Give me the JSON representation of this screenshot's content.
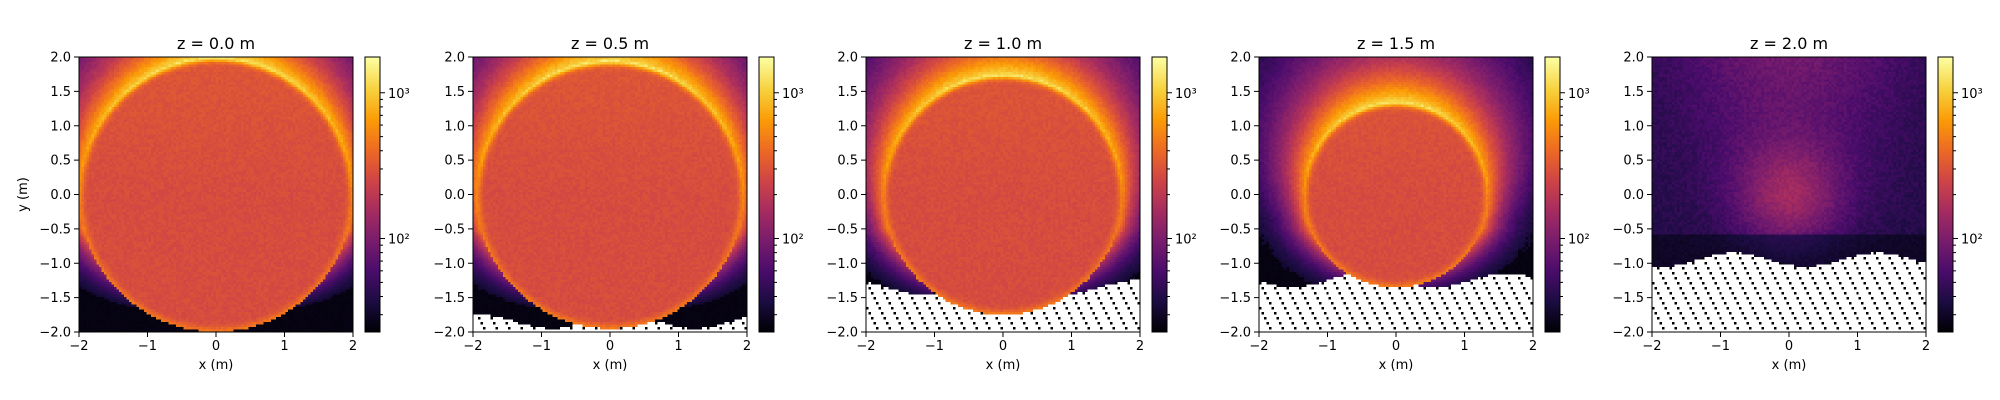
{
  "chart_data": [
    {
      "type": "heatmap",
      "title": "z = 0.0 m",
      "xlabel": "x (m)",
      "ylabel": "y (m)",
      "xlim": [
        -2,
        2
      ],
      "ylim": [
        -2,
        2
      ],
      "xticks": [
        "−2",
        "−1",
        "0",
        "1",
        "2"
      ],
      "yticks": [
        "2.0",
        "1.5",
        "1.0",
        "0.5",
        "0.0",
        "−0.5",
        "−1.0",
        "−1.5",
        "−2.0"
      ],
      "colormap": "inferno",
      "color_scale": "log",
      "colorbar_ticks": [
        "10²",
        "10³"
      ],
      "disc": {
        "center_y": 0.0,
        "radius": 2.0
      },
      "masked_below_y": null
    },
    {
      "type": "heatmap",
      "title": "z = 0.5 m",
      "xlabel": "x (m)",
      "ylabel": "",
      "xlim": [
        -2,
        2
      ],
      "ylim": [
        -2,
        2
      ],
      "xticks": [
        "−2",
        "−1",
        "0",
        "1",
        "2"
      ],
      "yticks": [
        "2.0",
        "1.5",
        "1.0",
        "0.5",
        "0.0",
        "−0.5",
        "−1.0",
        "−1.5",
        "−2.0"
      ],
      "colormap": "inferno",
      "color_scale": "log",
      "colorbar_ticks": [
        "10²",
        "10³"
      ],
      "disc": {
        "center_y": 0.0,
        "radius": 1.95
      },
      "masked_below_y": -1.85
    },
    {
      "type": "heatmap",
      "title": "z = 1.0 m",
      "xlabel": "x (m)",
      "ylabel": "",
      "xlim": [
        -2,
        2
      ],
      "ylim": [
        -2,
        2
      ],
      "xticks": [
        "−2",
        "−1",
        "0",
        "1",
        "2"
      ],
      "yticks": [
        "2.0",
        "1.5",
        "1.0",
        "0.5",
        "0.0",
        "−0.5",
        "−1.0",
        "−1.5",
        "−2.0"
      ],
      "colormap": "inferno",
      "color_scale": "log",
      "colorbar_ticks": [
        "10²",
        "10³"
      ],
      "disc": {
        "center_y": 0.0,
        "radius": 1.75
      },
      "masked_below_y": -1.35
    },
    {
      "type": "heatmap",
      "title": "z = 1.5 m",
      "xlabel": "x (m)",
      "ylabel": "",
      "xlim": [
        -2,
        2
      ],
      "ylim": [
        -2,
        2
      ],
      "xticks": [
        "−2",
        "−1",
        "0",
        "1",
        "2"
      ],
      "yticks": [
        "2.0",
        "1.5",
        "1.0",
        "0.5",
        "0.0",
        "−0.5",
        "−1.0",
        "−1.5",
        "−2.0"
      ],
      "colormap": "inferno",
      "color_scale": "log",
      "colorbar_ticks": [
        "10²",
        "10³"
      ],
      "disc": {
        "center_y": 0.0,
        "radius": 1.35
      },
      "masked_below_y": -1.25
    },
    {
      "type": "heatmap",
      "title": "z = 2.0 m",
      "xlabel": "x (m)",
      "ylabel": "",
      "xlim": [
        -2,
        2
      ],
      "ylim": [
        -2,
        2
      ],
      "xticks": [
        "−2",
        "−1",
        "0",
        "1",
        "2"
      ],
      "yticks": [
        "2.0",
        "1.5",
        "1.0",
        "0.5",
        "0.0",
        "−0.5",
        "−1.0",
        "−1.5",
        "−2.0"
      ],
      "colormap": "inferno",
      "color_scale": "log",
      "colorbar_ticks": [
        "10²",
        "10³"
      ],
      "disc": null,
      "masked_below_y": -0.95
    }
  ],
  "colors": {
    "inferno_stops": [
      "#000004",
      "#1b0c41",
      "#4a0c6b",
      "#781c6d",
      "#a52c60",
      "#cf4446",
      "#ed6925",
      "#fb9b06",
      "#f7d13d",
      "#fcffa4"
    ],
    "frame": "#000000",
    "mask": "#ffffff"
  }
}
